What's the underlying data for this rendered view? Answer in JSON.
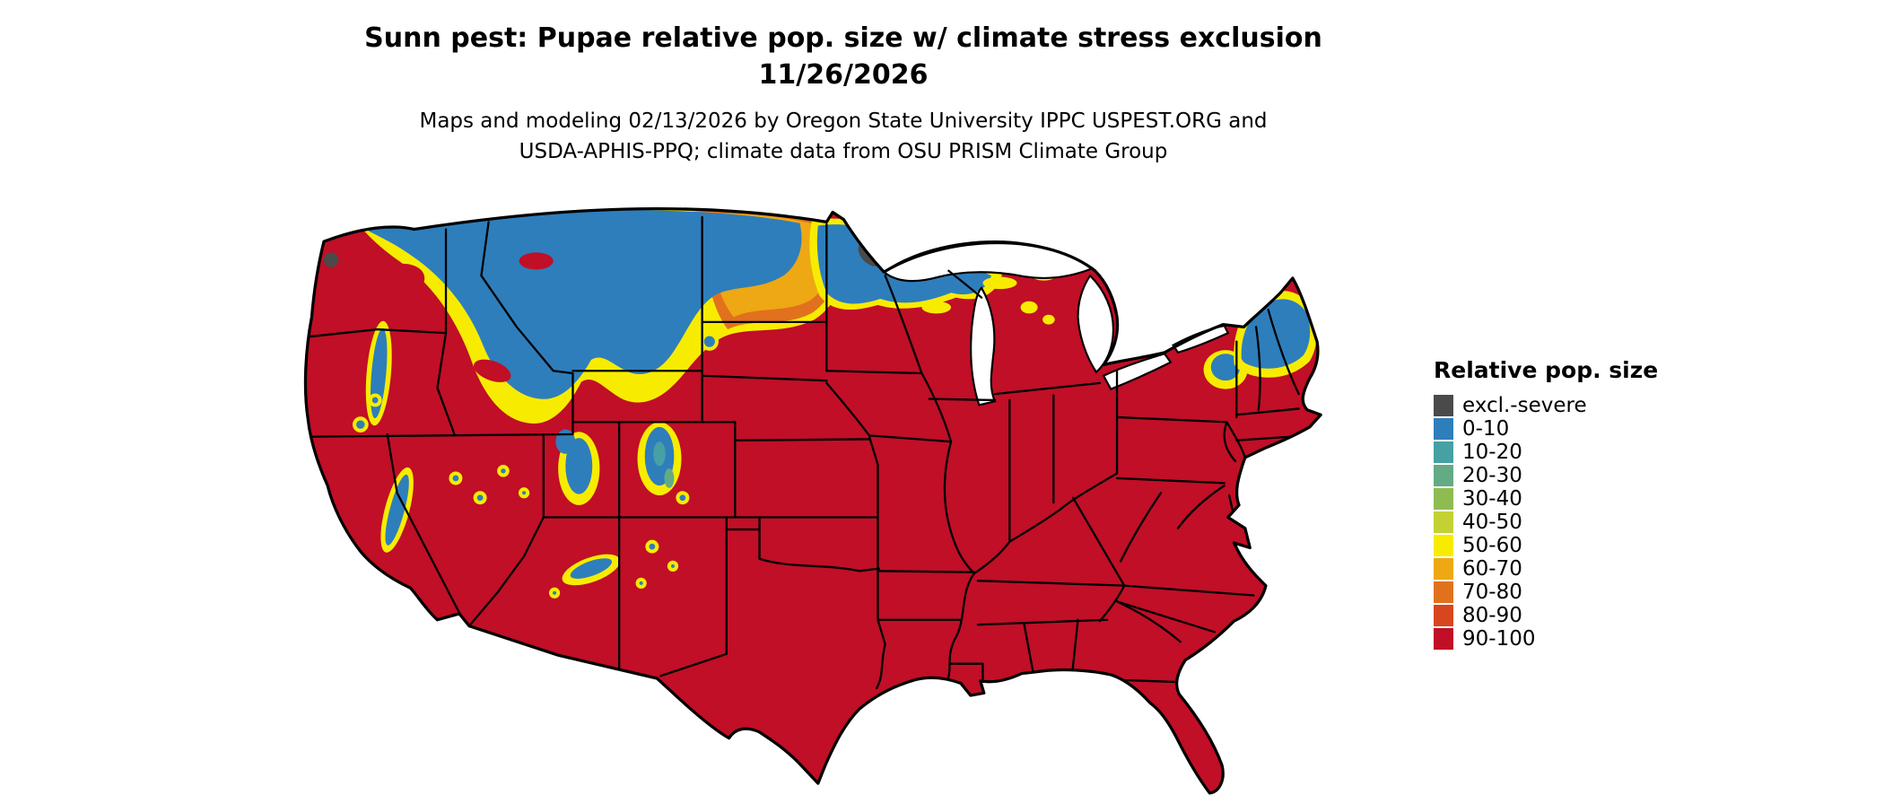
{
  "title": {
    "line1": "Sunn pest: Pupae relative pop. size w/ climate stress exclusion",
    "line2": "11/26/2026"
  },
  "subtitle": {
    "line1": "Maps and modeling 02/13/2026 by Oregon State University IPPC USPEST.ORG and",
    "line2": "USDA-APHIS-PPQ; climate data from OSU PRISM Climate Group"
  },
  "legend": {
    "title": "Relative pop. size",
    "items": [
      {
        "key": "excl-severe",
        "label": "excl.-severe",
        "color": "#4a4a4a"
      },
      {
        "key": "0-10",
        "label": "0-10",
        "color": "#2e7ebc"
      },
      {
        "key": "10-20",
        "label": "10-20",
        "color": "#46a0a4"
      },
      {
        "key": "20-30",
        "label": "20-30",
        "color": "#63ab84"
      },
      {
        "key": "30-40",
        "label": "30-40",
        "color": "#8fbc52"
      },
      {
        "key": "40-50",
        "label": "40-50",
        "color": "#c4d134"
      },
      {
        "key": "50-60",
        "label": "50-60",
        "color": "#f7ec00"
      },
      {
        "key": "60-70",
        "label": "60-70",
        "color": "#eda813"
      },
      {
        "key": "70-80",
        "label": "70-80",
        "color": "#e2711d"
      },
      {
        "key": "80-90",
        "label": "80-90",
        "color": "#d8461f"
      },
      {
        "key": "90-100",
        "label": "90-100",
        "color": "#c00f26"
      }
    ]
  }
}
